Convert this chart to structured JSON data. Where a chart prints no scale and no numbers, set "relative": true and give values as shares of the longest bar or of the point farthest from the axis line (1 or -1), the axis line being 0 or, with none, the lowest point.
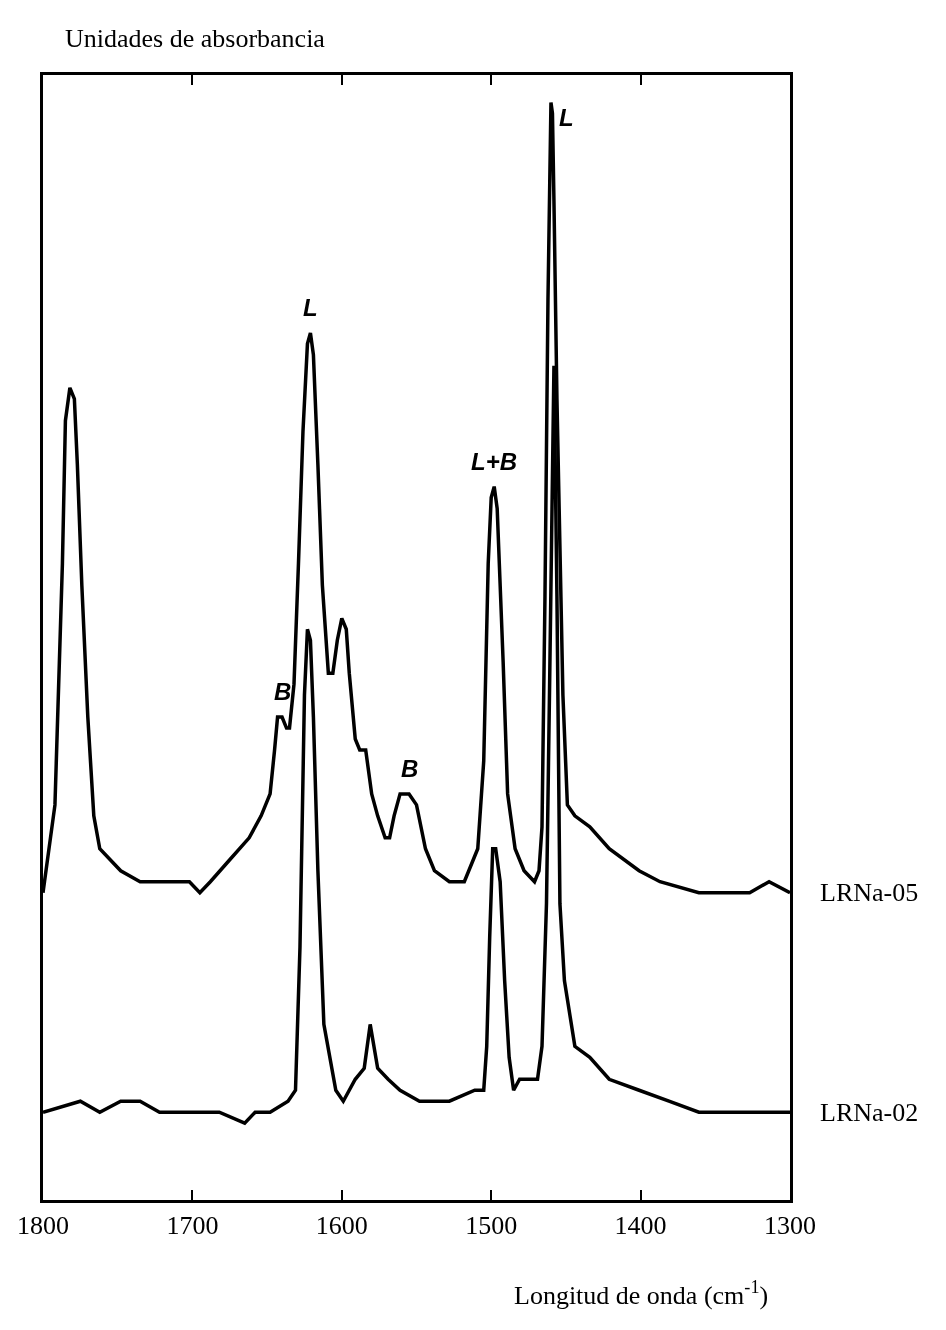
{
  "chart_data": {
    "type": "line",
    "relative": true,
    "ylabel": "Unidades de absorbancia",
    "xlabel": "Longitud de onda (cm$^{-1}$)",
    "xlim": [
      1800,
      1300
    ],
    "xticks": [
      1800,
      1700,
      1600,
      1500,
      1400,
      1300
    ],
    "series": [
      {
        "name": "LRNa-05",
        "color": "#000000",
        "x": [
          1800,
          1799,
          1792,
          1787,
          1785,
          1782,
          1779,
          1777,
          1774,
          1770,
          1766,
          1762,
          1755,
          1748,
          1735,
          1722,
          1708,
          1702,
          1695,
          1688,
          1675,
          1662,
          1654,
          1648,
          1645,
          1643,
          1640,
          1637,
          1635,
          1632,
          1629,
          1626,
          1623,
          1621,
          1619,
          1616,
          1613,
          1609,
          1606,
          1603,
          1600,
          1597,
          1595,
          1591,
          1588,
          1584,
          1580,
          1576,
          1571,
          1568,
          1565,
          1561,
          1555,
          1550,
          1544,
          1538,
          1528,
          1518,
          1509,
          1505,
          1502,
          1500,
          1498,
          1496,
          1492,
          1489,
          1484,
          1478,
          1471,
          1468,
          1466,
          1464,
          1462,
          1460,
          1459,
          1458,
          1456,
          1452,
          1449,
          1444,
          1434,
          1421,
          1401,
          1387,
          1361,
          1340,
          1327,
          1314,
          1300
        ],
        "values": [
          0.28,
          0.29,
          0.36,
          0.58,
          0.71,
          0.74,
          0.73,
          0.67,
          0.56,
          0.44,
          0.35,
          0.32,
          0.31,
          0.3,
          0.29,
          0.29,
          0.29,
          0.29,
          0.28,
          0.29,
          0.31,
          0.33,
          0.35,
          0.37,
          0.41,
          0.44,
          0.44,
          0.43,
          0.43,
          0.47,
          0.58,
          0.7,
          0.78,
          0.79,
          0.77,
          0.67,
          0.56,
          0.48,
          0.48,
          0.51,
          0.53,
          0.52,
          0.48,
          0.42,
          0.41,
          0.41,
          0.37,
          0.35,
          0.33,
          0.33,
          0.35,
          0.37,
          0.37,
          0.36,
          0.32,
          0.3,
          0.29,
          0.29,
          0.32,
          0.4,
          0.58,
          0.64,
          0.65,
          0.63,
          0.49,
          0.37,
          0.32,
          0.3,
          0.29,
          0.3,
          0.34,
          0.55,
          0.82,
          1.0,
          0.99,
          0.91,
          0.73,
          0.46,
          0.36,
          0.35,
          0.34,
          0.32,
          0.3,
          0.29,
          0.28,
          0.28,
          0.28,
          0.29,
          0.28
        ]
      },
      {
        "name": "LRNa-02",
        "color": "#000000",
        "x": [
          1800,
          1775,
          1762,
          1748,
          1735,
          1722,
          1708,
          1695,
          1682,
          1665,
          1658,
          1648,
          1636,
          1631,
          1628,
          1625,
          1623,
          1621,
          1619,
          1616,
          1612,
          1604,
          1599,
          1591,
          1585,
          1581,
          1576,
          1569,
          1561,
          1548,
          1528,
          1511,
          1505,
          1503,
          1501,
          1499,
          1497,
          1494,
          1491,
          1488,
          1485,
          1481,
          1469,
          1466,
          1463,
          1461,
          1458,
          1456,
          1454,
          1451,
          1444,
          1434,
          1421,
          1401,
          1381,
          1361,
          1340,
          1320,
          1300
        ],
        "values": [
          0.08,
          0.09,
          0.08,
          0.09,
          0.09,
          0.08,
          0.08,
          0.08,
          0.08,
          0.07,
          0.08,
          0.08,
          0.09,
          0.1,
          0.23,
          0.46,
          0.52,
          0.51,
          0.44,
          0.3,
          0.16,
          0.1,
          0.09,
          0.11,
          0.12,
          0.16,
          0.12,
          0.11,
          0.1,
          0.09,
          0.09,
          0.1,
          0.1,
          0.14,
          0.24,
          0.32,
          0.32,
          0.29,
          0.2,
          0.13,
          0.1,
          0.11,
          0.11,
          0.14,
          0.27,
          0.46,
          0.76,
          0.55,
          0.27,
          0.2,
          0.14,
          0.13,
          0.11,
          0.1,
          0.09,
          0.08,
          0.08,
          0.08,
          0.08
        ]
      }
    ],
    "annotations": [
      {
        "text": "L",
        "x": 1621,
        "y": 0.79
      },
      {
        "text": "B",
        "x": 1640,
        "y": 0.44
      },
      {
        "text": "B",
        "x": 1555,
        "y": 0.37
      },
      {
        "text": "L+B",
        "x": 1498,
        "y": 0.65
      },
      {
        "text": "L",
        "x": 1460,
        "y": 1.0
      }
    ]
  }
}
